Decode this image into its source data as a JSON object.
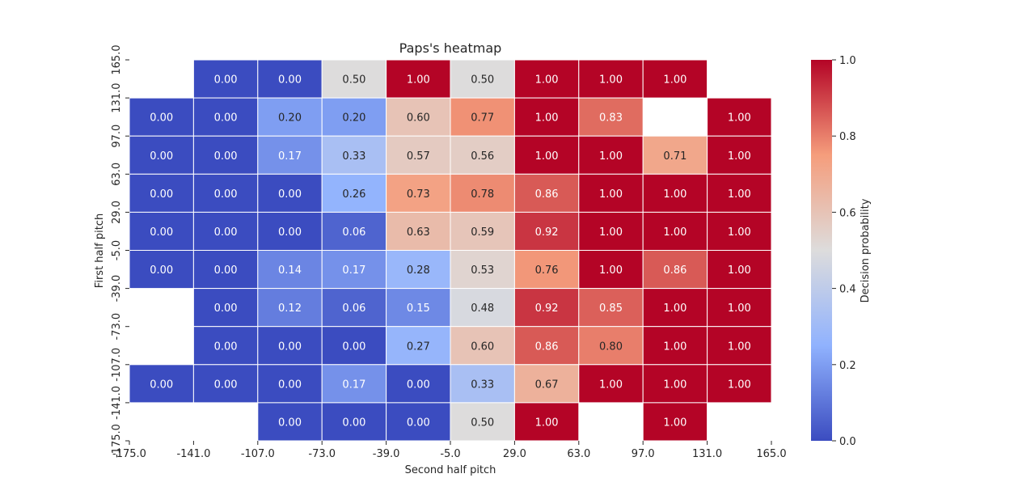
{
  "chart_data": {
    "type": "heatmap",
    "title": "Paps's heatmap",
    "xlabel": "Second half pitch",
    "ylabel": "First half pitch",
    "colorbar_label": "Decision probability",
    "x_ticks": [
      "-175.0",
      "-141.0",
      "-107.0",
      "-73.0",
      "-39.0",
      "-5.0",
      "29.0",
      "63.0",
      "97.0",
      "131.0",
      "165.0"
    ],
    "y_ticks": [
      "165.0",
      "131.0",
      "97.0",
      "63.0",
      "29.0",
      "-5.0",
      "-39.0",
      "-73.0",
      "-107.0",
      "-141.0",
      "-175.0"
    ],
    "colorbar_ticks": [
      "0.0",
      "0.2",
      "0.4",
      "0.6",
      "0.8",
      "1.0"
    ],
    "colormap": "coolwarm",
    "vmin": 0.0,
    "vmax": 1.0,
    "value_format": "2 decimals",
    "rows": [
      [
        null,
        0.0,
        0.0,
        0.5,
        1.0,
        0.5,
        1.0,
        1.0,
        1.0,
        null
      ],
      [
        0.0,
        0.0,
        0.2,
        0.2,
        0.6,
        0.77,
        1.0,
        0.83,
        null,
        1.0
      ],
      [
        0.0,
        0.0,
        0.17,
        0.33,
        0.57,
        0.56,
        1.0,
        1.0,
        0.71,
        1.0
      ],
      [
        0.0,
        0.0,
        0.0,
        0.26,
        0.73,
        0.78,
        0.86,
        1.0,
        1.0,
        1.0
      ],
      [
        0.0,
        0.0,
        0.0,
        0.06,
        0.63,
        0.59,
        0.92,
        1.0,
        1.0,
        1.0
      ],
      [
        0.0,
        0.0,
        0.14,
        0.17,
        0.28,
        0.53,
        0.76,
        1.0,
        0.86,
        1.0
      ],
      [
        null,
        0.0,
        0.12,
        0.06,
        0.15,
        0.48,
        0.92,
        0.85,
        1.0,
        1.0
      ],
      [
        null,
        0.0,
        0.0,
        0.0,
        0.27,
        0.6,
        0.86,
        0.8,
        1.0,
        1.0
      ],
      [
        0.0,
        0.0,
        0.0,
        0.17,
        0.0,
        0.33,
        0.67,
        1.0,
        1.0,
        1.0
      ],
      [
        null,
        null,
        0.0,
        0.0,
        0.0,
        0.5,
        1.0,
        null,
        1.0,
        null
      ]
    ]
  }
}
